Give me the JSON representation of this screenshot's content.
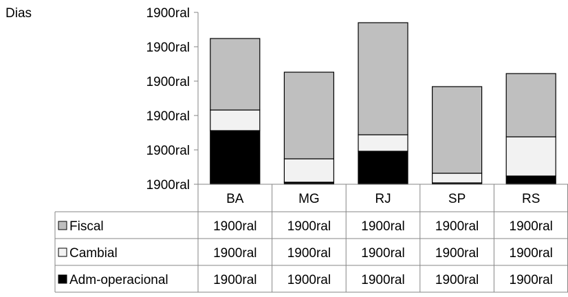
{
  "chart_data": {
    "type": "bar",
    "stacked": true,
    "ylabel": "Dias",
    "ytick_labels": [
      "1900ral",
      "1900ral",
      "1900ral",
      "1900ral",
      "1900ral",
      "1900ral"
    ],
    "ylim": [
      0,
      25
    ],
    "categories": [
      "BA",
      "MG",
      "RJ",
      "SP",
      "RS"
    ],
    "series": [
      {
        "name": "Adm-operacional",
        "color": "#000000",
        "values": [
          7.8,
          0.3,
          4.8,
          0.2,
          1.2
        ]
      },
      {
        "name": "Cambial",
        "color": "#f2f2f2",
        "values": [
          3.0,
          3.4,
          2.4,
          1.4,
          5.7
        ]
      },
      {
        "name": "Fiscal",
        "color": "#bfbfbf",
        "values": [
          10.4,
          12.6,
          16.3,
          12.6,
          9.2
        ]
      }
    ],
    "table": {
      "rows": [
        {
          "label": "Fiscal",
          "values": [
            "1900ral",
            "1900ral",
            "1900ral",
            "1900ral",
            "1900ral"
          ]
        },
        {
          "label": "Cambial",
          "values": [
            "1900ral",
            "1900ral",
            "1900ral",
            "1900ral",
            "1900ral"
          ]
        },
        {
          "label": "Adm-operacional",
          "values": [
            "1900ral",
            "1900ral",
            "1900ral",
            "1900ral",
            "1900ral"
          ]
        }
      ]
    }
  }
}
